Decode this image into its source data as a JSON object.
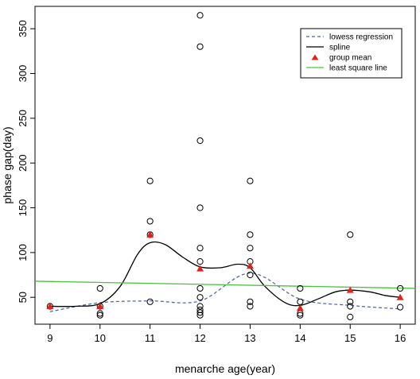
{
  "chart_data": {
    "type": "scatter",
    "title": "",
    "xlabel": "menarche age(year)",
    "ylabel": "phase gap(day)",
    "xlim": [
      8.7,
      16.3
    ],
    "ylim": [
      20,
      375
    ],
    "x_ticks": [
      9,
      10,
      11,
      12,
      13,
      14,
      15,
      16
    ],
    "y_ticks": [
      50,
      100,
      150,
      200,
      250,
      300,
      350
    ],
    "grid": false,
    "legend_position": "top-right",
    "points": [
      {
        "x": 9,
        "y": 40
      },
      {
        "x": 10,
        "y": 60
      },
      {
        "x": 10,
        "y": 40
      },
      {
        "x": 10,
        "y": 32
      },
      {
        "x": 10,
        "y": 30
      },
      {
        "x": 11,
        "y": 180
      },
      {
        "x": 11,
        "y": 135
      },
      {
        "x": 11,
        "y": 120
      },
      {
        "x": 11,
        "y": 45
      },
      {
        "x": 12,
        "y": 365
      },
      {
        "x": 12,
        "y": 330
      },
      {
        "x": 12,
        "y": 225
      },
      {
        "x": 12,
        "y": 150
      },
      {
        "x": 12,
        "y": 105
      },
      {
        "x": 12,
        "y": 90
      },
      {
        "x": 12,
        "y": 60
      },
      {
        "x": 12,
        "y": 50
      },
      {
        "x": 12,
        "y": 40
      },
      {
        "x": 12,
        "y": 36
      },
      {
        "x": 12,
        "y": 33
      },
      {
        "x": 12,
        "y": 30
      },
      {
        "x": 13,
        "y": 180
      },
      {
        "x": 13,
        "y": 120
      },
      {
        "x": 13,
        "y": 105
      },
      {
        "x": 13,
        "y": 90
      },
      {
        "x": 13,
        "y": 75
      },
      {
        "x": 13,
        "y": 45
      },
      {
        "x": 13,
        "y": 40
      },
      {
        "x": 14,
        "y": 60
      },
      {
        "x": 14,
        "y": 45
      },
      {
        "x": 14,
        "y": 32
      },
      {
        "x": 14,
        "y": 30
      },
      {
        "x": 15,
        "y": 120
      },
      {
        "x": 15,
        "y": 45
      },
      {
        "x": 15,
        "y": 40
      },
      {
        "x": 15,
        "y": 28
      },
      {
        "x": 16,
        "y": 60
      },
      {
        "x": 16,
        "y": 39
      }
    ],
    "series": [
      {
        "name": "lowess regression",
        "style": "dashed",
        "color": "#4a5fa8",
        "x": [
          9,
          10,
          11,
          12,
          13,
          14,
          15,
          16
        ],
        "y": [
          34,
          44,
          46,
          46,
          77,
          48,
          41,
          37
        ]
      },
      {
        "name": "spline",
        "style": "solid",
        "color": "#000000",
        "x": [
          9,
          9.5,
          10,
          10.4,
          10.75,
          11,
          11.3,
          11.65,
          12,
          12.4,
          12.75,
          13,
          13.3,
          13.7,
          14,
          14.35,
          14.7,
          15,
          15.4,
          15.7,
          16
        ],
        "y": [
          40,
          40,
          43,
          62,
          98,
          111,
          109,
          95,
          84,
          83,
          87,
          83,
          62,
          44,
          41,
          48,
          56,
          58,
          56,
          52,
          50
        ]
      },
      {
        "name": "group mean",
        "style": "triangle",
        "color": "#e0241c",
        "x": [
          9,
          10,
          11,
          12,
          13,
          14,
          15,
          16
        ],
        "y": [
          40,
          40,
          120,
          82,
          85,
          38,
          58,
          50
        ]
      },
      {
        "name": "least square line",
        "style": "solid",
        "color": "#4cc13d",
        "x": [
          8.7,
          16.3
        ],
        "y": [
          68,
          60
        ]
      }
    ]
  }
}
